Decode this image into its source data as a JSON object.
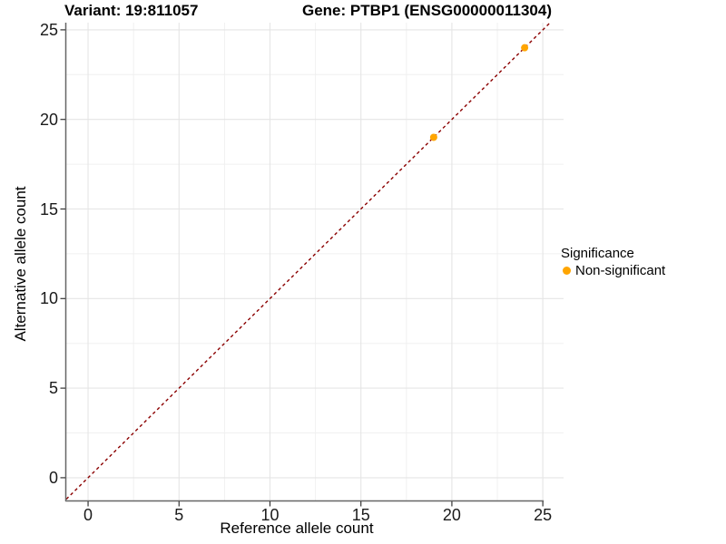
{
  "chart_data": {
    "type": "scatter",
    "title_left": "Variant: 19:811057",
    "title_right": "Gene: PTBP1 (ENSG00000011304)",
    "xlabel": "Reference allele count",
    "ylabel": "Alternative allele count",
    "x_ticks": [
      0,
      5,
      10,
      15,
      20,
      25
    ],
    "y_ticks": [
      0,
      5,
      10,
      15,
      20,
      25
    ],
    "xlim": [
      -1.2,
      26.14
    ],
    "ylim": [
      -1.27,
      25.4
    ],
    "minor_grid_step": 2.5,
    "grid": true,
    "background_color": "#FFFFFF",
    "series": [
      {
        "name": "Non-significant",
        "color": "#FFA500",
        "points": [
          [
            19,
            19
          ],
          [
            24,
            24
          ]
        ]
      }
    ],
    "reference_line": {
      "type": "identity",
      "slope": 1,
      "intercept": 0,
      "style": "dashed",
      "color": "#8B0000"
    },
    "legend": {
      "position": "right",
      "title": "Significance",
      "items": [
        {
          "label": "Non-significant",
          "color": "#FFA500",
          "marker_icon": "filled-circle-icon"
        }
      ]
    }
  }
}
